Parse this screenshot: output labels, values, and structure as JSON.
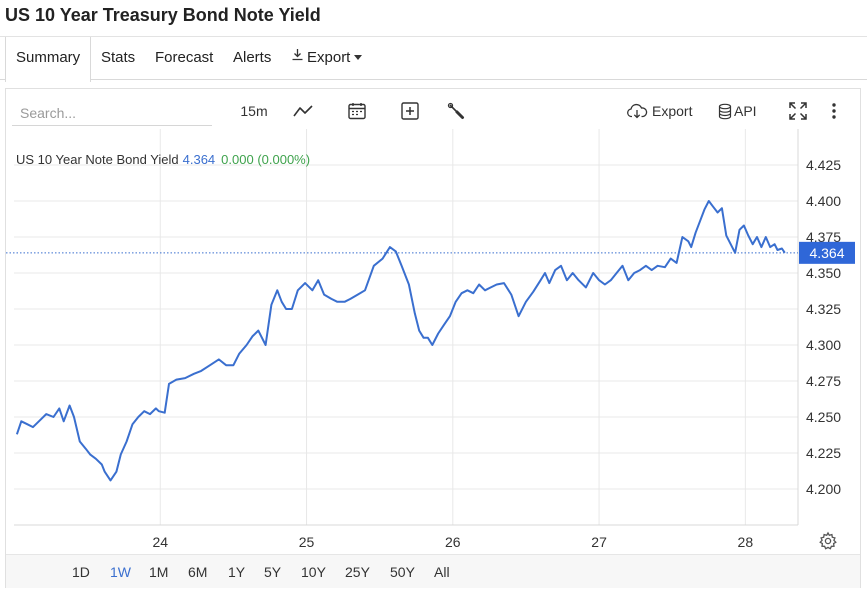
{
  "page": {
    "title": "US 10 Year Treasury Bond Note Yield"
  },
  "tabs": [
    {
      "label": "Summary",
      "active": true
    },
    {
      "label": "Stats",
      "active": false
    },
    {
      "label": "Forecast",
      "active": false
    },
    {
      "label": "Alerts",
      "active": false
    },
    {
      "label": "Export",
      "active": false
    }
  ],
  "toolbar": {
    "search_placeholder": "Search...",
    "interval": "15m",
    "export_label": "Export",
    "api_label": "API",
    "icons": [
      "line-chart-icon",
      "calendar-icon",
      "add-indicator-icon",
      "wrench-icon",
      "cloud-download-icon",
      "database-icon",
      "fullscreen-icon",
      "more-vertical-icon"
    ]
  },
  "legend": {
    "name": "US 10 Year Note Bond Yield",
    "last": "4.364",
    "change": "0.000 (0.000%)"
  },
  "ranges": [
    {
      "label": "1D",
      "active": false
    },
    {
      "label": "1W",
      "active": true
    },
    {
      "label": "1M",
      "active": false
    },
    {
      "label": "6M",
      "active": false
    },
    {
      "label": "1Y",
      "active": false
    },
    {
      "label": "5Y",
      "active": false
    },
    {
      "label": "10Y",
      "active": false
    },
    {
      "label": "25Y",
      "active": false
    },
    {
      "label": "50Y",
      "active": false
    },
    {
      "label": "All",
      "active": false
    }
  ],
  "colors": {
    "line": "#3a6fcf",
    "accent": "#2f67d8",
    "change_positive": "#3fa34d",
    "grid": "#e8e8e8"
  },
  "chart_data": {
    "type": "line",
    "title": "US 10 Year Note Bond Yield",
    "xlabel": "",
    "ylabel": "",
    "grid": true,
    "ylim": [
      4.175,
      4.45
    ],
    "xlim": [
      23.0,
      28.36
    ],
    "y_ticks": [
      4.2,
      4.225,
      4.25,
      4.275,
      4.3,
      4.325,
      4.35,
      4.375,
      4.4,
      4.425
    ],
    "y_tick_labels": [
      "4.200",
      "4.225",
      "4.250",
      "4.275",
      "4.300",
      "4.325",
      "4.350",
      "4.375",
      "4.400",
      "4.425"
    ],
    "x_ticks": [
      24,
      25,
      26,
      27,
      28
    ],
    "x_tick_labels": [
      "24",
      "25",
      "26",
      "27",
      "28"
    ],
    "last_value": 4.364,
    "last_value_label": "4.364",
    "series": [
      {
        "x": [
          23.02,
          23.05,
          23.09,
          23.13,
          23.18,
          23.22,
          23.27,
          23.31,
          23.34,
          23.38,
          23.41,
          23.45,
          23.49,
          23.52,
          23.56,
          23.6,
          23.62,
          23.66,
          23.7,
          23.73,
          23.77,
          23.81,
          23.85,
          23.89,
          23.93,
          23.97,
          23.99,
          24.03,
          24.06,
          24.11,
          24.17,
          24.23,
          24.28,
          24.34,
          24.4,
          24.45,
          24.5,
          24.54,
          24.59,
          24.63,
          24.67,
          24.72,
          24.76,
          24.8,
          24.83,
          24.86,
          24.9,
          24.94,
          24.99,
          25.04,
          25.08,
          25.12,
          25.17,
          25.21,
          25.26,
          25.3,
          25.35,
          25.4,
          25.46,
          25.52,
          25.57,
          25.61,
          25.65,
          25.7,
          25.74,
          25.77,
          25.8,
          25.83,
          25.86,
          25.9,
          25.94,
          25.98,
          26.02,
          26.06,
          26.1,
          26.14,
          26.18,
          26.22,
          26.26,
          26.3,
          26.35,
          26.4,
          26.45,
          26.5,
          26.55,
          26.6,
          26.63,
          26.66,
          26.7,
          26.74,
          26.78,
          26.82,
          26.86,
          26.91,
          26.96,
          27.0,
          27.04,
          27.08,
          27.12,
          27.16,
          27.2,
          27.24,
          27.28,
          27.32,
          27.36,
          27.4,
          27.45,
          27.49,
          27.53,
          27.57,
          27.61,
          27.63,
          27.66,
          27.69,
          27.72,
          27.75,
          27.78,
          27.81,
          27.84,
          27.87,
          27.9,
          27.93,
          27.96,
          27.99,
          28.02,
          28.05,
          28.08,
          28.11,
          28.14,
          28.17,
          28.2,
          28.22,
          28.25,
          28.27
        ],
        "y": [
          4.238,
          4.247,
          4.245,
          4.243,
          4.248,
          4.252,
          4.25,
          4.256,
          4.247,
          4.258,
          4.25,
          4.233,
          4.228,
          4.224,
          4.221,
          4.217,
          4.212,
          4.206,
          4.212,
          4.224,
          4.233,
          4.245,
          4.25,
          4.254,
          4.252,
          4.256,
          4.254,
          4.253,
          4.273,
          4.276,
          4.277,
          4.28,
          4.282,
          4.286,
          4.29,
          4.286,
          4.286,
          4.294,
          4.3,
          4.306,
          4.31,
          4.3,
          4.328,
          4.338,
          4.33,
          4.325,
          4.325,
          4.338,
          4.343,
          4.338,
          4.345,
          4.335,
          4.332,
          4.33,
          4.33,
          4.332,
          4.335,
          4.338,
          4.355,
          4.36,
          4.368,
          4.365,
          4.355,
          4.342,
          4.322,
          4.31,
          4.305,
          4.305,
          4.3,
          4.308,
          4.314,
          4.32,
          4.33,
          4.336,
          4.338,
          4.336,
          4.342,
          4.338,
          4.34,
          4.342,
          4.343,
          4.335,
          4.32,
          4.33,
          4.337,
          4.345,
          4.35,
          4.343,
          4.352,
          4.355,
          4.345,
          4.35,
          4.345,
          4.34,
          4.35,
          4.345,
          4.342,
          4.345,
          4.35,
          4.355,
          4.345,
          4.35,
          4.352,
          4.355,
          4.352,
          4.355,
          4.354,
          4.36,
          4.357,
          4.375,
          4.372,
          4.368,
          4.378,
          4.386,
          4.394,
          4.4,
          4.396,
          4.392,
          4.395,
          4.376,
          4.37,
          4.364,
          4.38,
          4.383,
          4.376,
          4.37,
          4.375,
          4.368,
          4.375,
          4.368,
          4.37,
          4.366,
          4.367,
          4.364
        ]
      }
    ]
  }
}
